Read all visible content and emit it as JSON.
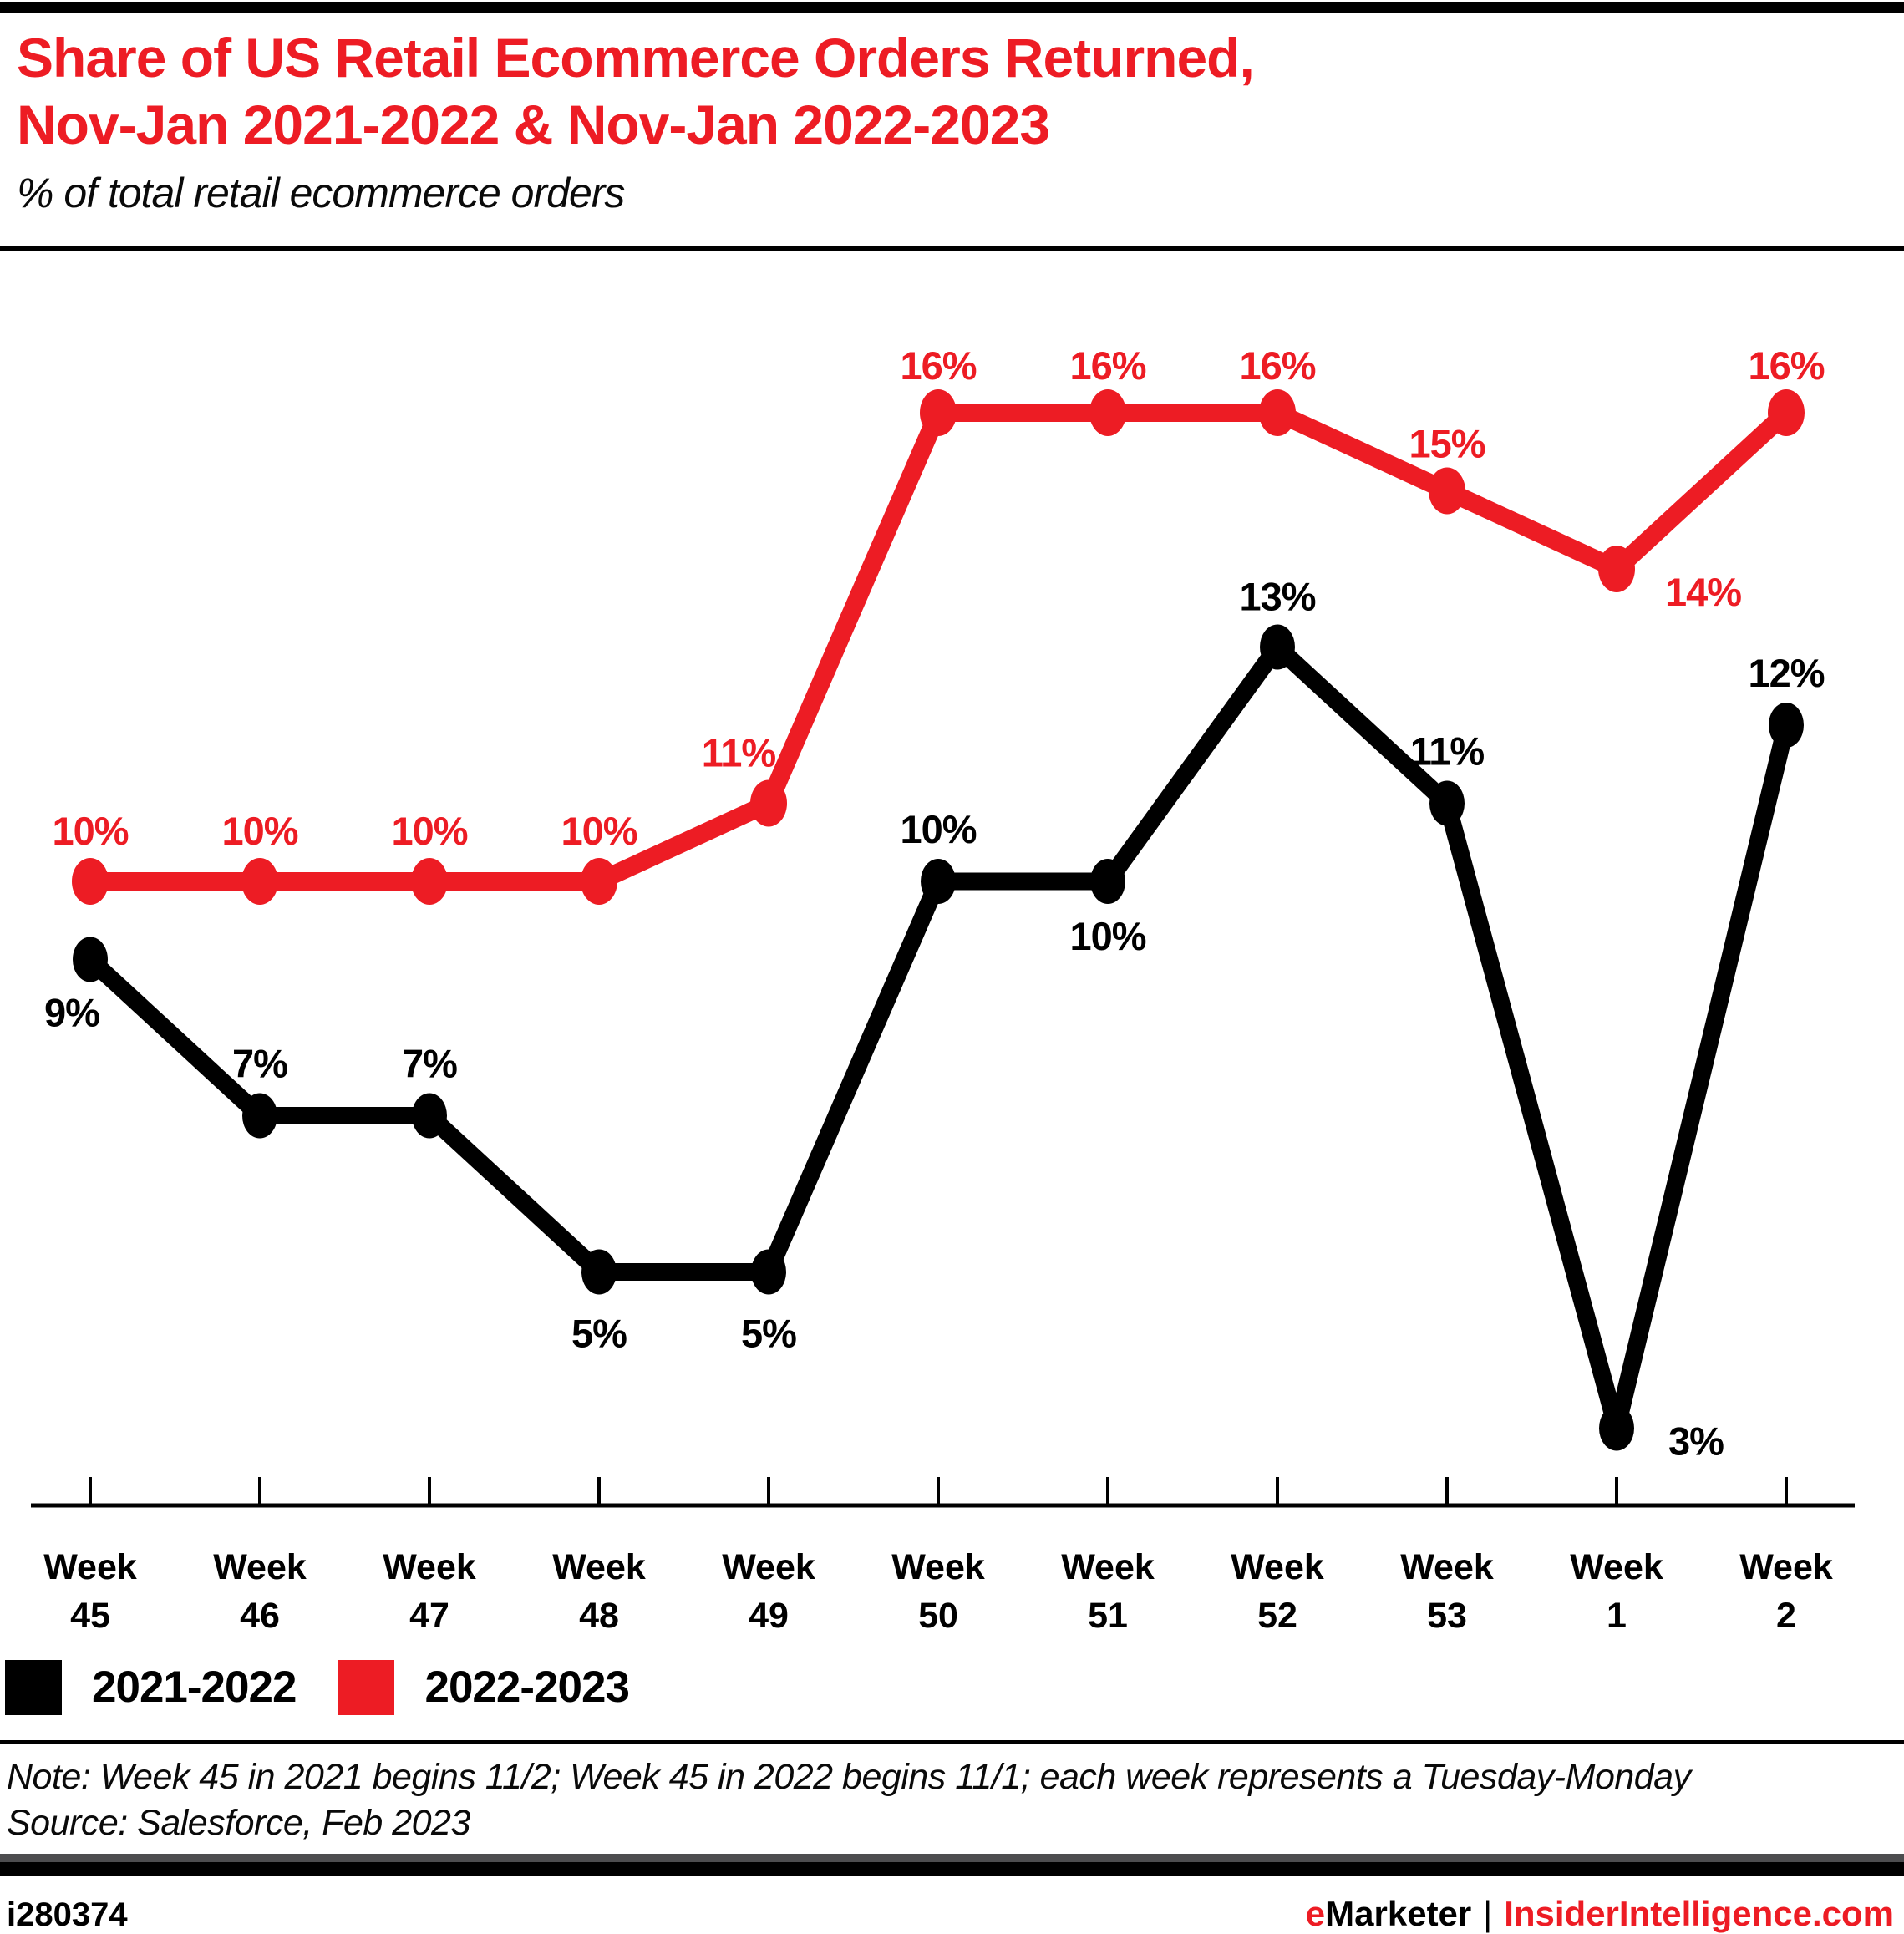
{
  "header": {
    "title_line1": "Share of US Retail Ecommerce Orders Returned,",
    "title_line2": "Nov-Jan 2021-2022 & Nov-Jan 2022-2023",
    "subtitle": "% of total retail ecommerce orders"
  },
  "chart_data": {
    "type": "line",
    "categories": [
      "Week 45",
      "Week 46",
      "Week 47",
      "Week 48",
      "Week 49",
      "Week 50",
      "Week 51",
      "Week 52",
      "Week 53",
      "Week 1",
      "Week 2"
    ],
    "unit": "%",
    "series": [
      {
        "name": "2021-2022",
        "color": "#000000",
        "values": [
          9,
          7,
          7,
          5,
          5,
          10,
          10,
          13,
          11,
          3,
          12
        ]
      },
      {
        "name": "2022-2023",
        "color": "#ed1c24",
        "values": [
          10,
          10,
          10,
          10,
          11,
          16,
          16,
          16,
          15,
          14,
          16
        ]
      }
    ],
    "ylim": [
      0,
      18
    ],
    "data_labels": true,
    "grid": false,
    "legend_position": "bottom"
  },
  "note": "Note: Week 45 in 2021 begins 11/2; Week 45 in 2022 begins 11/1; each week represents a Tuesday-Monday",
  "source": "Source: Salesforce, Feb 2023",
  "footer": {
    "chart_id": "i280374",
    "brand_first_letter": "e",
    "brand_rest": "Marketer",
    "separator": "|",
    "site": "InsiderIntelligence.com"
  },
  "colors": {
    "accent_red": "#ed1c24",
    "black": "#000000",
    "footer_gray": "#4d4d4f"
  }
}
